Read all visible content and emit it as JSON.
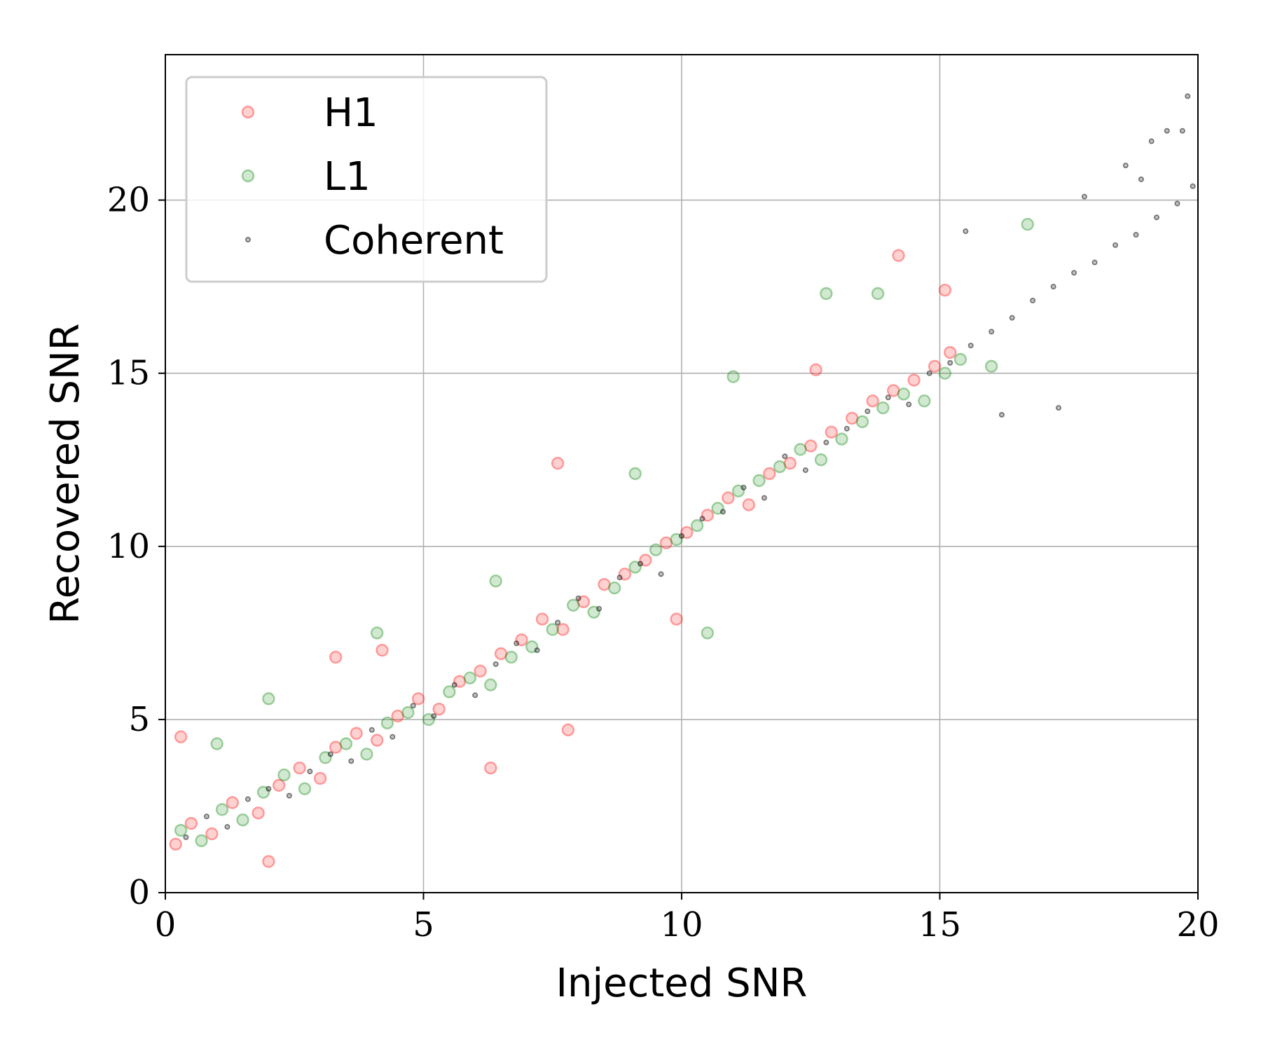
{
  "chart_data": {
    "type": "scatter",
    "title": "",
    "xlabel": "Injected SNR",
    "ylabel": "Recovered SNR",
    "xlim": [
      0,
      20
    ],
    "ylim": [
      0,
      24.2
    ],
    "xticks": [
      "0",
      "5",
      "10",
      "15",
      "20"
    ],
    "yticks": [
      "0",
      "5",
      "10",
      "15",
      "20"
    ],
    "grid": true,
    "legend_position": "top-left",
    "series": [
      {
        "name": "H1",
        "color": "#ff0000",
        "marker": "hollow-circle",
        "x": [
          0.2,
          0.5,
          0.9,
          1.3,
          1.8,
          2.2,
          2.6,
          3.0,
          3.3,
          3.7,
          4.1,
          4.5,
          4.9,
          5.3,
          5.7,
          6.1,
          6.5,
          6.9,
          7.3,
          7.7,
          8.1,
          8.5,
          8.9,
          9.3,
          9.7,
          10.1,
          10.5,
          10.9,
          11.3,
          11.7,
          12.1,
          12.5,
          12.9,
          13.3,
          13.7,
          14.1,
          14.5,
          14.9,
          15.2,
          0.3,
          2.0,
          4.2,
          6.3,
          7.8,
          9.9,
          12.6,
          14.2,
          15.1,
          3.3,
          7.6
        ],
        "y": [
          1.4,
          2.0,
          1.7,
          2.6,
          2.3,
          3.1,
          3.6,
          3.3,
          4.2,
          4.6,
          4.4,
          5.1,
          5.6,
          5.3,
          6.1,
          6.4,
          6.9,
          7.3,
          7.9,
          7.6,
          8.4,
          8.9,
          9.2,
          9.6,
          10.1,
          10.4,
          10.9,
          11.4,
          11.2,
          12.1,
          12.4,
          12.9,
          13.3,
          13.7,
          14.2,
          14.5,
          14.8,
          15.2,
          15.6,
          4.5,
          0.9,
          7.0,
          3.6,
          4.7,
          7.9,
          15.1,
          18.4,
          17.4,
          6.8,
          12.4
        ]
      },
      {
        "name": "L1",
        "color": "#008000",
        "marker": "hollow-circle",
        "x": [
          0.3,
          0.7,
          1.1,
          1.5,
          1.9,
          2.3,
          2.7,
          3.1,
          3.5,
          3.9,
          4.3,
          4.7,
          5.1,
          5.5,
          5.9,
          6.3,
          6.7,
          7.1,
          7.5,
          7.9,
          8.3,
          8.7,
          9.1,
          9.5,
          9.9,
          10.3,
          10.7,
          11.1,
          11.5,
          11.9,
          12.3,
          12.7,
          13.1,
          13.5,
          13.9,
          14.3,
          14.7,
          15.1,
          15.4,
          1.0,
          2.0,
          4.1,
          6.4,
          9.1,
          10.5,
          11.0,
          12.8,
          13.8,
          16.7,
          16.0
        ],
        "y": [
          1.8,
          1.5,
          2.4,
          2.1,
          2.9,
          3.4,
          3.0,
          3.9,
          4.3,
          4.0,
          4.9,
          5.2,
          5.0,
          5.8,
          6.2,
          6.0,
          6.8,
          7.1,
          7.6,
          8.3,
          8.1,
          8.8,
          9.4,
          9.9,
          10.2,
          10.6,
          11.1,
          11.6,
          11.9,
          12.3,
          12.8,
          12.5,
          13.1,
          13.6,
          14.0,
          14.4,
          14.2,
          15.0,
          15.4,
          4.3,
          5.6,
          7.5,
          9.0,
          12.1,
          7.5,
          14.9,
          17.3,
          17.3,
          19.3,
          15.2
        ]
      },
      {
        "name": "Coherent",
        "color": "#000000",
        "marker": "small-dot",
        "x": [
          0.4,
          0.8,
          1.2,
          1.6,
          2.0,
          2.4,
          2.8,
          3.2,
          3.6,
          4.0,
          4.4,
          4.8,
          5.2,
          5.6,
          6.0,
          6.4,
          6.8,
          7.2,
          7.6,
          8.0,
          8.4,
          8.8,
          9.2,
          9.6,
          10.0,
          10.4,
          10.8,
          11.2,
          11.6,
          12.0,
          12.4,
          12.8,
          13.2,
          13.6,
          14.0,
          14.4,
          14.8,
          15.2,
          15.6,
          16.0,
          16.4,
          16.8,
          17.2,
          17.6,
          18.0,
          18.4,
          18.8,
          19.2,
          19.6,
          19.9,
          17.3,
          18.9,
          19.4,
          19.8,
          16.2,
          15.5,
          17.8,
          18.6,
          19.1,
          19.7
        ],
        "y": [
          1.6,
          2.2,
          1.9,
          2.7,
          3.0,
          2.8,
          3.5,
          4.0,
          3.8,
          4.7,
          4.5,
          5.4,
          5.1,
          6.0,
          5.7,
          6.6,
          7.2,
          7.0,
          7.8,
          8.5,
          8.2,
          9.1,
          9.5,
          9.2,
          10.3,
          10.8,
          11.0,
          11.7,
          11.4,
          12.6,
          12.2,
          13.0,
          13.4,
          13.9,
          14.3,
          14.1,
          15.0,
          15.3,
          15.8,
          16.2,
          16.6,
          17.1,
          17.5,
          17.9,
          18.2,
          18.7,
          19.0,
          19.5,
          19.9,
          20.4,
          14.0,
          20.6,
          22.0,
          23.0,
          13.8,
          19.1,
          20.1,
          21.0,
          21.7,
          22.0
        ]
      }
    ]
  }
}
